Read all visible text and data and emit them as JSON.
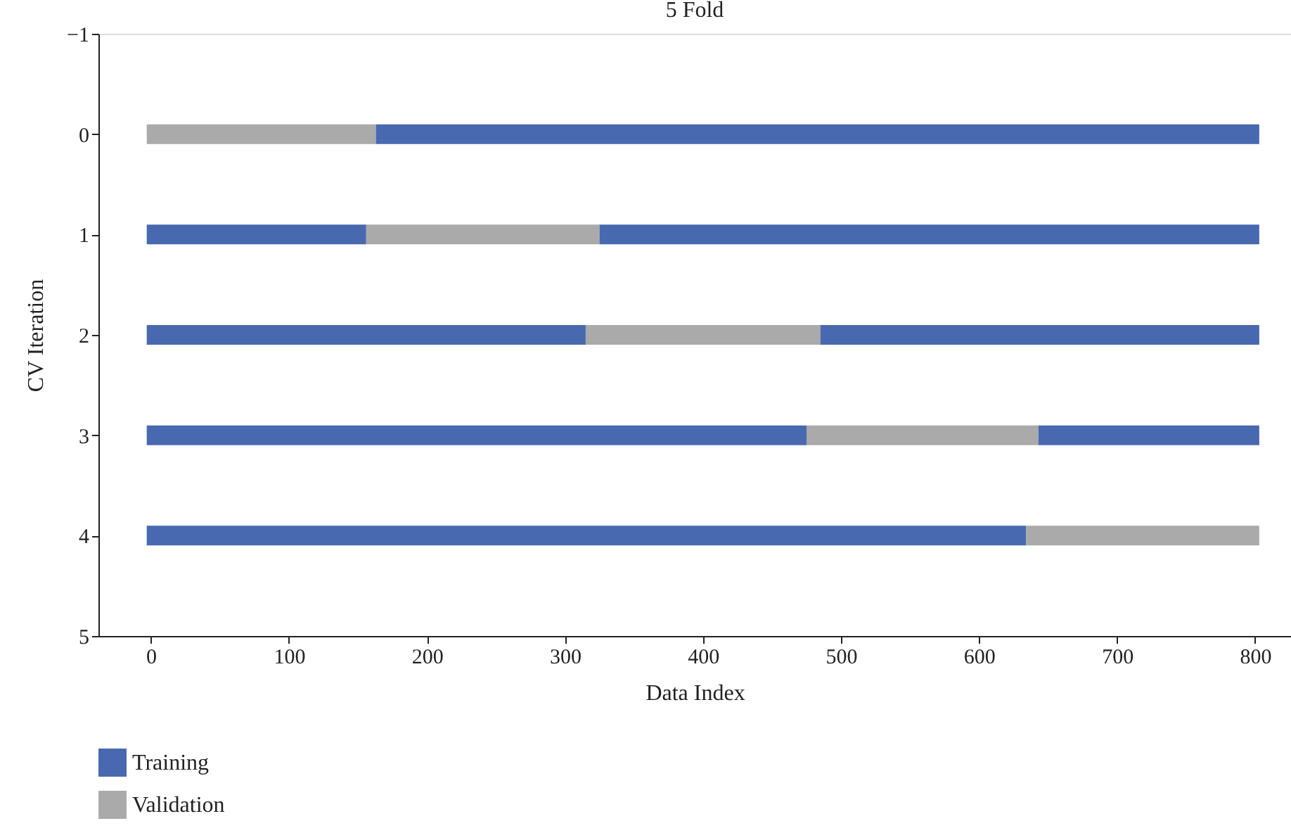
{
  "chart_data": {
    "type": "bar",
    "orientation": "horizontal",
    "title": "5 Fold",
    "xlabel": "Data Index",
    "ylabel": "CV Iteration",
    "x": [
      0,
      1,
      2,
      3,
      4
    ],
    "series": [
      {
        "name": "Training",
        "color": "#4869b0",
        "base": [
          null,
          -3,
          -3,
          -3,
          -3
        ],
        "values": [
          null,
          159,
          318,
          478,
          637
        ]
      },
      {
        "name": "Validation",
        "color": "#a9aaa9",
        "base": [
          -3,
          156,
          315,
          475,
          634
        ],
        "values": [
          166,
          169,
          170,
          168,
          169
        ]
      },
      {
        "color": "#4869b0",
        "base": [
          163,
          325,
          485,
          643,
          null
        ],
        "values": [
          640,
          478,
          318,
          160,
          null
        ]
      }
    ],
    "xlim": [
      -38,
      826
    ],
    "xticks": [
      0,
      100,
      200,
      300,
      400,
      500,
      600,
      700,
      800
    ],
    "ylim": [
      5,
      -1
    ],
    "yticks": [
      -1,
      0,
      1,
      2,
      3,
      4,
      5
    ],
    "grid": false,
    "legend": "bottom left"
  }
}
